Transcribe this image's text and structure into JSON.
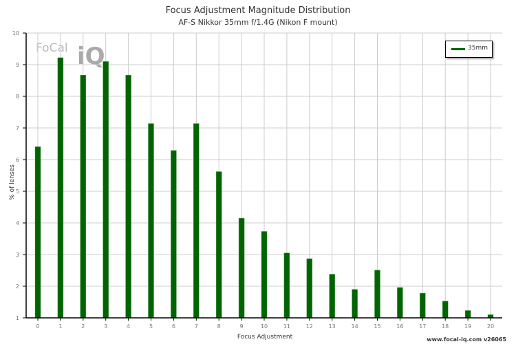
{
  "chart_data": {
    "type": "bar",
    "title": "Focus Adjustment Magnitude Distribution",
    "subtitle": "AF-S Nikkor 35mm f/1.4G (Nikon F mount)",
    "xlabel": "Focus Adjustment",
    "ylabel": "% of lenses",
    "categories": [
      "0",
      "1",
      "2",
      "3",
      "4",
      "5",
      "6",
      "7",
      "8",
      "9",
      "10",
      "11",
      "12",
      "13",
      "14",
      "15",
      "16",
      "17",
      "18",
      "19",
      "20"
    ],
    "series": [
      {
        "name": "35mm",
        "color": "#006400",
        "values": [
          6.41,
          9.22,
          8.67,
          9.1,
          8.67,
          7.14,
          6.29,
          7.14,
          5.62,
          4.15,
          3.73,
          3.05,
          2.87,
          2.38,
          1.9,
          2.51,
          1.96,
          1.78,
          1.53,
          1.23,
          1.1
        ]
      }
    ],
    "ylim": [
      1,
      10
    ],
    "yticks": [
      "1",
      "2",
      "3",
      "4",
      "5",
      "6",
      "7",
      "8",
      "9",
      "10"
    ],
    "grid": true,
    "legend_position": "top-right"
  },
  "footer": "www.focal-iq.com  v26065",
  "watermark": {
    "text": "FoCal",
    "suffix": "iQ"
  }
}
